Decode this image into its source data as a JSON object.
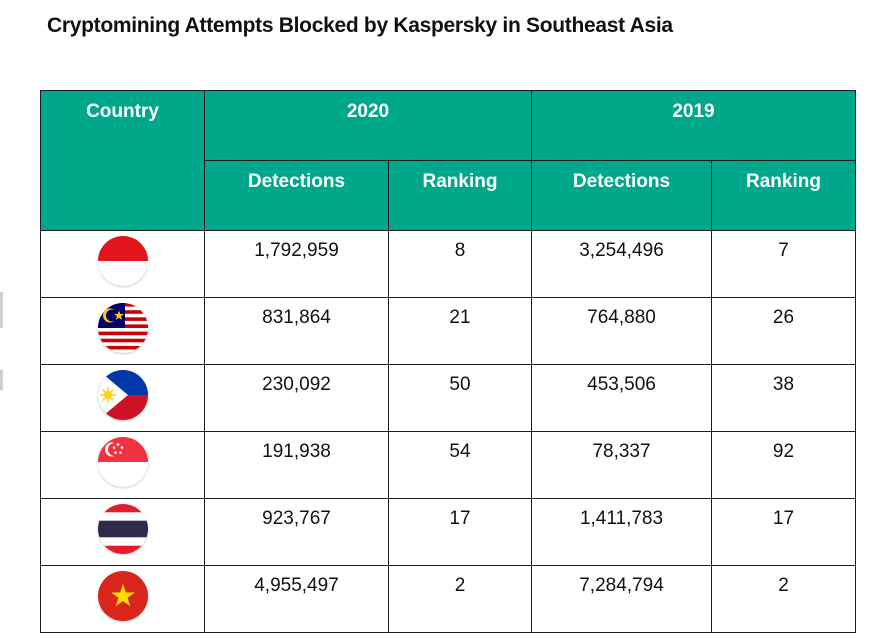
{
  "title": "Cryptomining Attempts Blocked by Kaspersky in Southeast Asia",
  "header": {
    "country": "Country",
    "year_a": "2020",
    "year_b": "2019",
    "detections": "Detections",
    "ranking": "Ranking"
  },
  "rows": [
    {
      "flag": "indonesia-flag",
      "det_2020": "1,792,959",
      "rank_2020": "8",
      "det_2019": "3,254,496",
      "rank_2019": "7"
    },
    {
      "flag": "malaysia-flag",
      "det_2020": "831,864",
      "rank_2020": "21",
      "det_2019": "764,880",
      "rank_2019": "26"
    },
    {
      "flag": "philippines-flag",
      "det_2020": "230,092",
      "rank_2020": "50",
      "det_2019": "453,506",
      "rank_2019": "38"
    },
    {
      "flag": "singapore-flag",
      "det_2020": "191,938",
      "rank_2020": "54",
      "det_2019": "78,337",
      "rank_2019": "92"
    },
    {
      "flag": "thailand-flag",
      "det_2020": "923,767",
      "rank_2020": "17",
      "det_2019": "1,411,783",
      "rank_2019": "17"
    },
    {
      "flag": "vietnam-flag",
      "det_2020": "4,955,497",
      "rank_2020": "2",
      "det_2019": "7,284,794",
      "rank_2019": "2"
    }
  ],
  "colors": {
    "header_bg": "#00a88b",
    "header_text": "#ffffff",
    "border": "#1d1d1d"
  }
}
